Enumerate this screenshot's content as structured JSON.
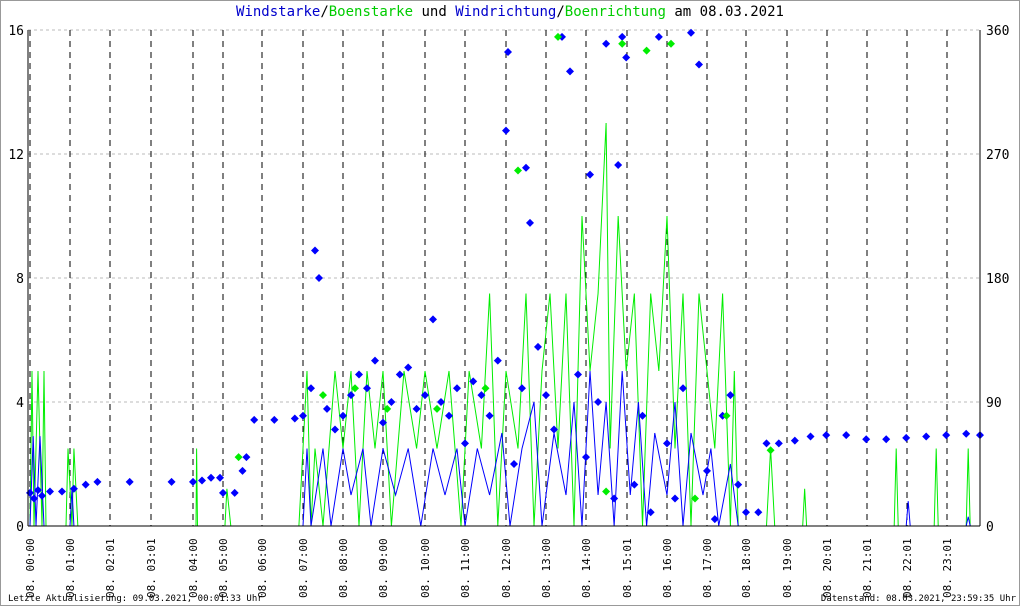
{
  "title": {
    "p1": "Windstarke",
    "s1": "/",
    "p2": "Boenstarke",
    "p3": " und ",
    "p4": "Windrichtung",
    "s2": "/",
    "p5": "Boenrichtung",
    "p6": " am 08.03.2021"
  },
  "footer": {
    "left": "Letzte Aktualisierung: 09.03.2021, 00:01:33 Uhr",
    "right": "Datenstand: 08.03.2021, 23:59:35 Uhr"
  },
  "colors": {
    "speed": "#0000ff",
    "gust": "#00ee00",
    "direction": "#0000ff",
    "gust_direction": "#00ee00",
    "grid": "#bbbbbb"
  },
  "chart_data": {
    "type": "line",
    "title": "Windstarke/Boenstarke und Windrichtung/Boenrichtung am 08.03.2021",
    "ylim_left": [
      0,
      16
    ],
    "yticks_left": [
      0,
      4,
      8,
      12,
      16
    ],
    "ylim_right": [
      0,
      360
    ],
    "yticks_right": [
      0,
      90,
      180,
      270,
      360
    ],
    "xticks": [
      {
        "h": 0,
        "label": "08. 00:00"
      },
      {
        "h": 1,
        "label": "08. 01:00"
      },
      {
        "h": 2.02,
        "label": "08. 02:01"
      },
      {
        "h": 3.02,
        "label": "08. 03:01"
      },
      {
        "h": 4,
        "label": "08. 04:00"
      },
      {
        "h": 5,
        "label": "08. 05:00"
      },
      {
        "h": 6,
        "label": "08. 06:00"
      },
      {
        "h": 7,
        "label": "08. 07:00"
      },
      {
        "h": 8,
        "label": "08. 08:00"
      },
      {
        "h": 9,
        "label": "08. 09:00"
      },
      {
        "h": 10,
        "label": "08. 10:00"
      },
      {
        "h": 11,
        "label": "08. 11:00"
      },
      {
        "h": 12,
        "label": "08. 12:00"
      },
      {
        "h": 13,
        "label": "08. 13:00"
      },
      {
        "h": 14,
        "label": "08. 14:00"
      },
      {
        "h": 15.02,
        "label": "08. 15:01"
      },
      {
        "h": 16,
        "label": "08. 16:00"
      },
      {
        "h": 17,
        "label": "08. 17:00"
      },
      {
        "h": 18,
        "label": "08. 18:00"
      },
      {
        "h": 19,
        "label": "08. 19:00"
      },
      {
        "h": 20.02,
        "label": "08. 20:01"
      },
      {
        "h": 21.02,
        "label": "08. 21:01"
      },
      {
        "h": 22.02,
        "label": "08. 22:01"
      },
      {
        "h": 23.02,
        "label": "08. 23:01"
      }
    ],
    "series": [
      {
        "name": "Boenstarke",
        "axis": "left",
        "style": "line",
        "values": [
          [
            0,
            0
          ],
          [
            0.05,
            5
          ],
          [
            0.1,
            0
          ],
          [
            0.2,
            5
          ],
          [
            0.3,
            0
          ],
          [
            0.35,
            5
          ],
          [
            0.4,
            0
          ],
          [
            0.9,
            0
          ],
          [
            0.95,
            2.5
          ],
          [
            1.05,
            0
          ],
          [
            1.1,
            2.5
          ],
          [
            1.2,
            0
          ],
          [
            4.1,
            0
          ],
          [
            4.12,
            2.5
          ],
          [
            4.15,
            0
          ],
          [
            5.05,
            0
          ],
          [
            5.1,
            1.2
          ],
          [
            5.2,
            0
          ],
          [
            6.9,
            0
          ],
          [
            7.0,
            2.5
          ],
          [
            7.1,
            5
          ],
          [
            7.2,
            0
          ],
          [
            7.3,
            2.5
          ],
          [
            7.5,
            0
          ],
          [
            7.8,
            5
          ],
          [
            8.0,
            2.5
          ],
          [
            8.2,
            5
          ],
          [
            8.4,
            0
          ],
          [
            8.6,
            5
          ],
          [
            8.8,
            2.5
          ],
          [
            9.0,
            5
          ],
          [
            9.2,
            0
          ],
          [
            9.5,
            5
          ],
          [
            9.8,
            2.5
          ],
          [
            10.0,
            5
          ],
          [
            10.3,
            2.5
          ],
          [
            10.6,
            5
          ],
          [
            10.9,
            0
          ],
          [
            11.1,
            5
          ],
          [
            11.4,
            2.5
          ],
          [
            11.6,
            7.5
          ],
          [
            11.8,
            0
          ],
          [
            12.0,
            5
          ],
          [
            12.3,
            2.5
          ],
          [
            12.5,
            7.5
          ],
          [
            12.7,
            0
          ],
          [
            12.9,
            5
          ],
          [
            13.1,
            7.5
          ],
          [
            13.3,
            2.5
          ],
          [
            13.5,
            7.5
          ],
          [
            13.7,
            0
          ],
          [
            13.9,
            10
          ],
          [
            14.1,
            5
          ],
          [
            14.3,
            7.5
          ],
          [
            14.5,
            13
          ],
          [
            14.6,
            2.5
          ],
          [
            14.8,
            10
          ],
          [
            15.0,
            5
          ],
          [
            15.2,
            7.5
          ],
          [
            15.4,
            0
          ],
          [
            15.6,
            7.5
          ],
          [
            15.8,
            5
          ],
          [
            16.0,
            10
          ],
          [
            16.2,
            2.5
          ],
          [
            16.4,
            7.5
          ],
          [
            16.6,
            0
          ],
          [
            16.8,
            7.5
          ],
          [
            17.0,
            5
          ],
          [
            17.2,
            2.5
          ],
          [
            17.4,
            7.5
          ],
          [
            17.6,
            0
          ],
          [
            17.7,
            5
          ],
          [
            17.8,
            0
          ],
          [
            18.5,
            0
          ],
          [
            18.6,
            2.5
          ],
          [
            18.7,
            0
          ],
          [
            19.4,
            0
          ],
          [
            19.45,
            1.2
          ],
          [
            19.5,
            0
          ],
          [
            21.7,
            0
          ],
          [
            21.75,
            2.5
          ],
          [
            21.8,
            0
          ],
          [
            22.7,
            0
          ],
          [
            22.75,
            2.5
          ],
          [
            22.8,
            0
          ],
          [
            23.5,
            0
          ],
          [
            23.55,
            2.5
          ],
          [
            23.6,
            0
          ],
          [
            24,
            0
          ]
        ]
      },
      {
        "name": "Windstarke",
        "axis": "left",
        "style": "line",
        "values": [
          [
            0,
            0
          ],
          [
            0.08,
            2.9
          ],
          [
            0.15,
            0
          ],
          [
            0.25,
            2.9
          ],
          [
            0.35,
            0
          ],
          [
            1.0,
            0
          ],
          [
            1.05,
            1.2
          ],
          [
            1.1,
            0
          ],
          [
            7.0,
            0
          ],
          [
            7.1,
            2.5
          ],
          [
            7.2,
            0
          ],
          [
            7.5,
            2.5
          ],
          [
            7.7,
            0
          ],
          [
            8.0,
            2.5
          ],
          [
            8.2,
            1
          ],
          [
            8.5,
            2.5
          ],
          [
            8.7,
            0
          ],
          [
            9.0,
            2.5
          ],
          [
            9.3,
            1
          ],
          [
            9.6,
            2.5
          ],
          [
            9.9,
            0
          ],
          [
            10.2,
            2.5
          ],
          [
            10.5,
            1
          ],
          [
            10.8,
            2.5
          ],
          [
            11.0,
            0
          ],
          [
            11.3,
            2.5
          ],
          [
            11.6,
            1
          ],
          [
            11.9,
            3
          ],
          [
            12.1,
            0
          ],
          [
            12.4,
            2.5
          ],
          [
            12.7,
            4
          ],
          [
            12.9,
            0
          ],
          [
            13.2,
            3
          ],
          [
            13.5,
            1
          ],
          [
            13.7,
            4
          ],
          [
            13.9,
            0
          ],
          [
            14.1,
            5
          ],
          [
            14.3,
            1
          ],
          [
            14.5,
            4
          ],
          [
            14.7,
            0
          ],
          [
            14.9,
            5
          ],
          [
            15.1,
            1
          ],
          [
            15.3,
            4
          ],
          [
            15.5,
            0
          ],
          [
            15.7,
            3
          ],
          [
            16.0,
            1
          ],
          [
            16.2,
            4
          ],
          [
            16.4,
            0
          ],
          [
            16.6,
            3
          ],
          [
            16.9,
            1
          ],
          [
            17.1,
            2.5
          ],
          [
            17.3,
            0
          ],
          [
            17.6,
            2
          ],
          [
            17.8,
            0
          ],
          [
            22.0,
            0
          ],
          [
            22.05,
            0.8
          ],
          [
            22.1,
            0
          ],
          [
            23.5,
            0
          ],
          [
            23.55,
            0.3
          ],
          [
            23.6,
            0
          ],
          [
            24,
            0
          ]
        ]
      },
      {
        "name": "Windrichtung",
        "axis": "right",
        "style": "diamond",
        "values": [
          [
            0,
            24
          ],
          [
            0.1,
            20
          ],
          [
            0.2,
            26
          ],
          [
            0.3,
            22
          ],
          [
            0.5,
            25
          ],
          [
            0.8,
            25
          ],
          [
            1.1,
            27
          ],
          [
            1.4,
            30
          ],
          [
            1.7,
            32
          ],
          [
            2.5,
            32
          ],
          [
            3.5,
            32
          ],
          [
            4.0,
            32
          ],
          [
            4.3,
            33
          ],
          [
            4.6,
            35
          ],
          [
            4.9,
            35
          ],
          [
            5.0,
            24
          ],
          [
            5.3,
            24
          ],
          [
            5.5,
            40
          ],
          [
            5.6,
            50
          ],
          [
            5.8,
            77
          ],
          [
            6.3,
            77
          ],
          [
            6.8,
            78
          ],
          [
            7.0,
            80
          ],
          [
            7.2,
            100
          ],
          [
            7.3,
            200
          ],
          [
            7.4,
            180
          ],
          [
            7.6,
            85
          ],
          [
            7.8,
            70
          ],
          [
            8.0,
            80
          ],
          [
            8.2,
            95
          ],
          [
            8.4,
            110
          ],
          [
            8.6,
            100
          ],
          [
            8.8,
            120
          ],
          [
            9.0,
            75
          ],
          [
            9.2,
            90
          ],
          [
            9.4,
            110
          ],
          [
            9.6,
            115
          ],
          [
            9.8,
            85
          ],
          [
            10.0,
            95
          ],
          [
            10.2,
            150
          ],
          [
            10.4,
            90
          ],
          [
            10.6,
            80
          ],
          [
            10.8,
            100
          ],
          [
            11.0,
            60
          ],
          [
            11.2,
            105
          ],
          [
            11.4,
            95
          ],
          [
            11.6,
            80
          ],
          [
            11.8,
            120
          ],
          [
            12.0,
            287
          ],
          [
            12.05,
            344
          ],
          [
            12.2,
            45
          ],
          [
            12.4,
            100
          ],
          [
            12.5,
            260
          ],
          [
            12.6,
            220
          ],
          [
            12.8,
            130
          ],
          [
            13.0,
            95
          ],
          [
            13.2,
            70
          ],
          [
            13.4,
            355
          ],
          [
            13.6,
            330
          ],
          [
            13.8,
            110
          ],
          [
            14.0,
            50
          ],
          [
            14.1,
            255
          ],
          [
            14.3,
            90
          ],
          [
            14.5,
            350
          ],
          [
            14.7,
            20
          ],
          [
            14.8,
            262
          ],
          [
            14.9,
            355
          ],
          [
            15.0,
            340
          ],
          [
            15.2,
            30
          ],
          [
            15.4,
            80
          ],
          [
            15.6,
            10
          ],
          [
            15.8,
            355
          ],
          [
            16.0,
            60
          ],
          [
            16.2,
            20
          ],
          [
            16.4,
            100
          ],
          [
            16.6,
            358
          ],
          [
            16.8,
            335
          ],
          [
            17.0,
            40
          ],
          [
            17.2,
            5
          ],
          [
            17.4,
            80
          ],
          [
            17.6,
            95
          ],
          [
            17.8,
            30
          ],
          [
            18.0,
            10
          ],
          [
            18.3,
            10
          ],
          [
            18.5,
            60
          ],
          [
            18.8,
            60
          ],
          [
            19.2,
            62
          ],
          [
            19.6,
            65
          ],
          [
            20.0,
            66
          ],
          [
            20.5,
            66
          ],
          [
            21.0,
            63
          ],
          [
            21.5,
            63
          ],
          [
            22.0,
            64
          ],
          [
            22.5,
            65
          ],
          [
            23.0,
            66
          ],
          [
            23.5,
            67
          ],
          [
            24,
            66
          ]
        ]
      },
      {
        "name": "Boenrichtung",
        "axis": "right",
        "style": "diamond",
        "values": [
          [
            5.4,
            50
          ],
          [
            7.5,
            95
          ],
          [
            8.3,
            100
          ],
          [
            9.1,
            85
          ],
          [
            10.3,
            85
          ],
          [
            11.5,
            100
          ],
          [
            12.3,
            258
          ],
          [
            13.3,
            355
          ],
          [
            14.5,
            25
          ],
          [
            14.9,
            350
          ],
          [
            15.5,
            345
          ],
          [
            16.1,
            350
          ],
          [
            16.7,
            20
          ],
          [
            17.5,
            80
          ],
          [
            18.6,
            55
          ]
        ]
      }
    ]
  }
}
